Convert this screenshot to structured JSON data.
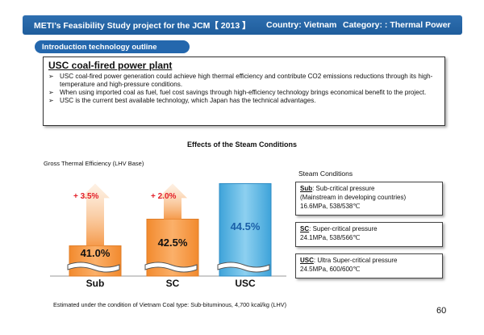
{
  "header": {
    "title": "METI’s Feasibility Study project  for the JCM【 2013 】",
    "country": "Country: Vietnam",
    "category": "Category: :  Thermal Power"
  },
  "section_pill": "Introduction technology outline",
  "intro": {
    "title": "USC coal-fired power plant",
    "bullet_mark": "➢",
    "bullets": [
      "USC coal-fired power generation could achieve high thermal efficiency and contribute CO2 emissions reductions through its high-temperature and high-pressure conditions.",
      "When using imported coal as fuel, fuel cost savings through high-efficiency technology brings economical benefit to the project.",
      "USC is the current best available technology, which Japan has the technical advantages."
    ]
  },
  "chart_data": {
    "type": "bar",
    "title": "Effects of the Steam Conditions",
    "ylabel": "Gross Thermal Efficiency (LHV Base)",
    "categories": [
      "Sub",
      "SC",
      "USC"
    ],
    "values": [
      41.0,
      42.5,
      44.5
    ],
    "value_labels": [
      "41.0%",
      "42.5%",
      "44.5%"
    ],
    "increments": [
      "+ 3.5%",
      "+ 2.0%",
      ""
    ],
    "colors": {
      "sub_sc": "#f59a4b",
      "usc": "#5bb4e0",
      "increment": "#e3202a"
    }
  },
  "steam_conditions": {
    "title": "Steam Conditions",
    "items": [
      {
        "abbr": "Sub",
        "desc": ": Sub-critical pressure",
        "desc2": "(Mainstream in developing countries)",
        "spec": "16.6MPa, 538/538℃"
      },
      {
        "abbr": "SC",
        "desc": ": Super-critical pressure",
        "desc2": "",
        "spec": "24.1MPa, 538/566℃"
      },
      {
        "abbr": "USC",
        "desc": ": Ultra Super-critical   pressure",
        "desc2": "",
        "spec": "24.5MPa, 600/600℃"
      }
    ]
  },
  "footnote": "Estimated under the condition of Vietnam     Coal type:  Sub-bituminous, 4,700 kcal/kg (LHV)",
  "page_number": "60"
}
